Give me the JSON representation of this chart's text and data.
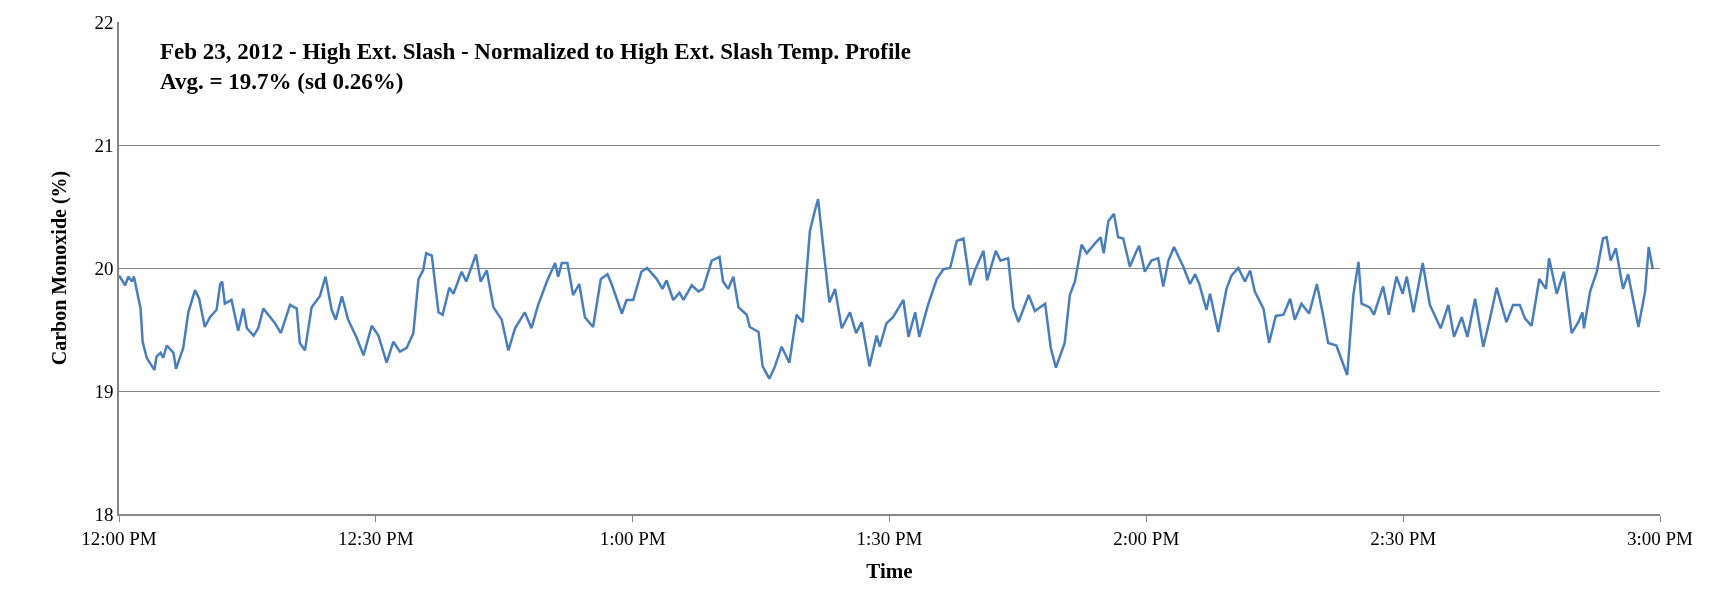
{
  "chart_data": {
    "type": "line",
    "title": "Feb 23, 2012 - High Ext. Slash - Normalized to High Ext. Slash Temp. Profile",
    "subtitle": "Avg. = 19.7% (sd 0.26%)",
    "xlabel": "Time",
    "ylabel": "Carbon Monoxide (%)",
    "xlim": [
      12,
      15
    ],
    "ylim": [
      18,
      22
    ],
    "xticks": [
      {
        "value": 12,
        "label": "12:00 PM"
      },
      {
        "value": 12.5,
        "label": "12:30 PM"
      },
      {
        "value": 13,
        "label": "1:00 PM"
      },
      {
        "value": 13.5,
        "label": "1:30 PM"
      },
      {
        "value": 14,
        "label": "2:00 PM"
      },
      {
        "value": 14.5,
        "label": "2:30 PM"
      },
      {
        "value": 15,
        "label": "3:00 PM"
      }
    ],
    "yticks": [
      18,
      19,
      20,
      21,
      22
    ],
    "grid": "y",
    "marker": "none",
    "line_style": "solid",
    "series": [
      {
        "color": "#4a7ebb",
        "x": [
          12.0,
          12.012,
          12.018,
          12.025,
          12.029,
          12.042,
          12.046,
          12.054,
          12.069,
          12.073,
          12.081,
          12.086,
          12.093,
          12.106,
          12.111,
          12.125,
          12.135,
          12.148,
          12.156,
          12.167,
          12.177,
          12.19,
          12.197,
          12.201,
          12.206,
          12.219,
          12.232,
          12.242,
          12.249,
          12.262,
          12.271,
          12.281,
          12.304,
          12.315,
          12.333,
          12.346,
          12.352,
          12.362,
          12.375,
          12.391,
          12.402,
          12.414,
          12.422,
          12.434,
          12.446,
          12.463,
          12.476,
          12.492,
          12.505,
          12.521,
          12.534,
          12.547,
          12.56,
          12.573,
          12.583,
          12.592,
          12.598,
          12.609,
          12.622,
          12.63,
          12.643,
          12.651,
          12.667,
          12.676,
          12.695,
          12.704,
          12.716,
          12.729,
          12.745,
          12.758,
          12.771,
          12.79,
          12.803,
          12.816,
          12.833,
          12.849,
          12.855,
          12.862,
          12.873,
          12.884,
          12.896,
          12.907,
          12.923,
          12.938,
          12.951,
          12.959,
          12.979,
          12.988,
          13.001,
          13.017,
          13.028,
          13.047,
          13.058,
          13.066,
          13.079,
          13.091,
          13.099,
          13.115,
          13.128,
          13.137,
          13.154,
          13.169,
          13.176,
          13.186,
          13.196,
          13.206,
          13.222,
          13.228,
          13.245,
          13.253,
          13.266,
          13.277,
          13.29,
          13.305,
          13.319,
          13.331,
          13.345,
          13.355,
          13.361,
          13.371,
          13.383,
          13.394,
          13.407,
          13.423,
          13.435,
          13.446,
          13.461,
          13.475,
          13.481,
          13.494,
          13.507,
          13.527,
          13.537,
          13.55,
          13.558,
          13.575,
          13.592,
          13.605,
          13.618,
          13.631,
          13.644,
          13.657,
          13.666,
          13.683,
          13.69,
          13.707,
          13.716,
          13.731,
          13.741,
          13.751,
          13.771,
          13.783,
          13.803,
          13.814,
          13.824,
          13.841,
          13.851,
          13.861,
          13.874,
          13.884,
          13.9,
          13.911,
          13.917,
          13.926,
          13.937,
          13.945,
          13.955,
          13.968,
          13.98,
          13.986,
          13.997,
          14.01,
          14.023,
          14.033,
          14.043,
          14.054,
          14.072,
          14.085,
          14.095,
          14.103,
          14.117,
          14.124,
          14.14,
          14.156,
          14.166,
          14.179,
          14.192,
          14.202,
          14.211,
          14.228,
          14.239,
          14.252,
          14.267,
          14.28,
          14.289,
          14.302,
          14.317,
          14.332,
          14.344,
          14.354,
          14.37,
          14.391,
          14.403,
          14.413,
          14.419,
          14.435,
          14.443,
          14.461,
          14.472,
          14.487,
          14.499,
          14.507,
          14.52,
          14.538,
          14.552,
          14.573,
          14.588,
          14.599,
          14.614,
          14.625,
          14.64,
          14.656,
          14.669,
          14.682,
          14.701,
          14.714,
          14.727,
          14.737,
          14.75,
          14.765,
          14.778,
          14.784,
          14.799,
          14.813,
          14.828,
          14.841,
          14.849,
          14.852,
          14.864,
          14.877,
          14.889,
          14.896,
          14.904,
          14.914,
          14.928,
          14.938,
          14.958,
          14.971,
          14.978,
          14.986
        ],
        "values": [
          19.94,
          19.86,
          19.93,
          19.89,
          19.93,
          19.67,
          19.4,
          19.27,
          19.17,
          19.28,
          19.31,
          19.27,
          19.37,
          19.31,
          19.18,
          19.35,
          19.64,
          19.82,
          19.75,
          19.52,
          19.6,
          19.66,
          19.87,
          19.89,
          19.71,
          19.74,
          19.49,
          19.67,
          19.51,
          19.45,
          19.51,
          19.67,
          19.55,
          19.47,
          19.7,
          19.67,
          19.39,
          19.33,
          19.68,
          19.77,
          19.93,
          19.66,
          19.58,
          19.77,
          19.58,
          19.43,
          19.29,
          19.53,
          19.45,
          19.23,
          19.4,
          19.32,
          19.35,
          19.47,
          19.91,
          19.98,
          20.12,
          20.1,
          19.64,
          19.62,
          19.84,
          19.79,
          19.97,
          19.89,
          20.11,
          19.89,
          19.98,
          19.68,
          19.58,
          19.33,
          19.51,
          19.64,
          19.51,
          19.7,
          19.89,
          20.04,
          19.93,
          20.04,
          20.04,
          19.78,
          19.87,
          19.6,
          19.52,
          19.91,
          19.95,
          19.87,
          19.63,
          19.74,
          19.74,
          19.97,
          20.0,
          19.91,
          19.83,
          19.9,
          19.74,
          19.8,
          19.74,
          19.86,
          19.81,
          19.83,
          20.06,
          20.09,
          19.89,
          19.83,
          19.93,
          19.68,
          19.62,
          19.52,
          19.48,
          19.2,
          19.1,
          19.2,
          19.36,
          19.23,
          19.62,
          19.56,
          20.3,
          20.47,
          20.56,
          20.17,
          19.72,
          19.83,
          19.51,
          19.64,
          19.47,
          19.56,
          19.2,
          19.45,
          19.36,
          19.55,
          19.6,
          19.74,
          19.44,
          19.64,
          19.44,
          19.7,
          19.91,
          19.99,
          20.0,
          20.22,
          20.24,
          19.86,
          19.98,
          20.14,
          19.9,
          20.14,
          20.06,
          20.08,
          19.68,
          19.56,
          19.78,
          19.65,
          19.71,
          19.35,
          19.19,
          19.39,
          19.78,
          19.89,
          20.19,
          20.12,
          20.2,
          20.25,
          20.12,
          20.38,
          20.44,
          20.25,
          20.24,
          20.01,
          20.13,
          20.18,
          19.97,
          20.06,
          20.08,
          19.85,
          20.06,
          20.17,
          20.01,
          19.87,
          19.95,
          19.87,
          19.66,
          19.79,
          19.48,
          19.83,
          19.94,
          20.0,
          19.89,
          19.98,
          19.81,
          19.67,
          19.39,
          19.61,
          19.62,
          19.75,
          19.58,
          19.71,
          19.63,
          19.87,
          19.62,
          19.39,
          19.37,
          19.13,
          19.78,
          20.05,
          19.71,
          19.68,
          19.62,
          19.85,
          19.62,
          19.93,
          19.79,
          19.93,
          19.64,
          20.04,
          19.7,
          19.51,
          19.7,
          19.44,
          19.6,
          19.44,
          19.75,
          19.36,
          19.59,
          19.84,
          19.56,
          19.7,
          19.7,
          19.59,
          19.53,
          19.91,
          19.83,
          20.08,
          19.79,
          19.97,
          19.47,
          19.56,
          19.64,
          19.51,
          19.81,
          19.97,
          20.24,
          20.25,
          20.06,
          20.16,
          19.83,
          19.95,
          19.52,
          19.81,
          20.17,
          19.99
        ]
      }
    ]
  }
}
